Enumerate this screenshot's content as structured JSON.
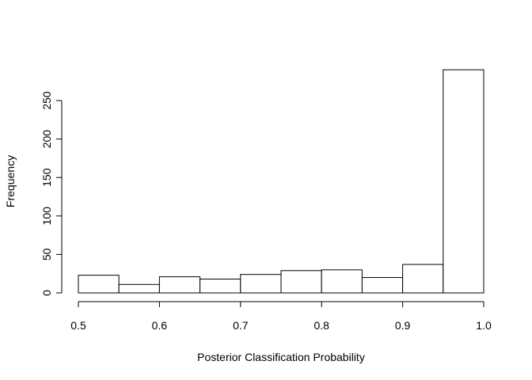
{
  "chart_data": {
    "type": "bar",
    "title": "",
    "xlabel": "Posterior Classification Probability",
    "ylabel": "Frequency",
    "bins": [
      {
        "x0": 0.5,
        "x1": 0.55,
        "count": 23
      },
      {
        "x0": 0.55,
        "x1": 0.6,
        "count": 11
      },
      {
        "x0": 0.6,
        "x1": 0.65,
        "count": 21
      },
      {
        "x0": 0.65,
        "x1": 0.7,
        "count": 18
      },
      {
        "x0": 0.7,
        "x1": 0.75,
        "count": 24
      },
      {
        "x0": 0.75,
        "x1": 0.8,
        "count": 29
      },
      {
        "x0": 0.8,
        "x1": 0.85,
        "count": 30
      },
      {
        "x0": 0.85,
        "x1": 0.9,
        "count": 20
      },
      {
        "x0": 0.9,
        "x1": 0.95,
        "count": 37
      },
      {
        "x0": 0.95,
        "x1": 1.0,
        "count": 290
      }
    ],
    "xlim": [
      0.5,
      1.0
    ],
    "ylim": [
      0,
      300
    ],
    "x_ticks": [
      0.5,
      0.6,
      0.7,
      0.8,
      0.9,
      1.0
    ],
    "x_tick_labels": [
      "0.5",
      "0.6",
      "0.7",
      "0.8",
      "0.9",
      "1.0"
    ],
    "y_ticks": [
      0,
      50,
      100,
      150,
      200,
      250
    ],
    "y_tick_labels": [
      "0",
      "50",
      "100",
      "150",
      "200",
      "250"
    ],
    "grid": false
  }
}
